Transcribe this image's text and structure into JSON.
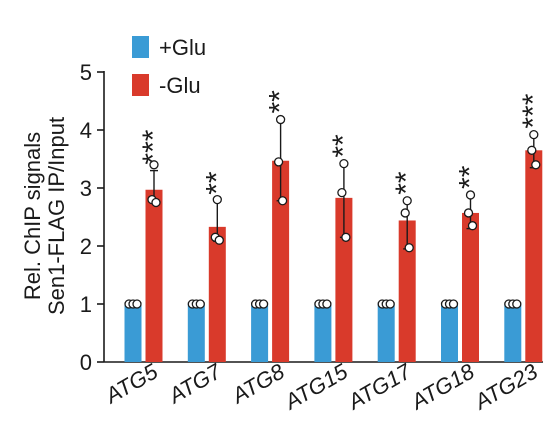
{
  "chart_data": {
    "type": "bar",
    "categories": [
      "ATG5",
      "ATG7",
      "ATG8",
      "ATG15",
      "ATG17",
      "ATG18",
      "ATG23"
    ],
    "ylabel": [
      "Rel. ChIP signals",
      "Sen1-FLAG IP/Input"
    ],
    "ylim": [
      0,
      5
    ],
    "yticks": [
      0,
      1,
      2,
      3,
      4,
      5
    ],
    "grid": false,
    "legend_position": "top-left",
    "series": [
      {
        "name": "+Glu",
        "color": "#3a9bd5",
        "values": [
          1.0,
          1.0,
          1.0,
          1.0,
          1.0,
          1.0,
          1.0
        ],
        "points": [
          [
            1,
            1,
            1
          ],
          [
            1,
            1,
            1
          ],
          [
            1,
            1,
            1
          ],
          [
            1,
            1,
            1
          ],
          [
            1,
            1,
            1
          ],
          [
            1,
            1,
            1
          ],
          [
            1,
            1,
            1
          ]
        ]
      },
      {
        "name": "-Glu",
        "color": "#d93a2b",
        "values": [
          2.97,
          2.33,
          3.47,
          2.83,
          2.44,
          2.57,
          3.65
        ],
        "error_low": [
          2.75,
          2.08,
          2.78,
          2.15,
          1.95,
          2.3,
          3.35
        ],
        "error_high": [
          3.3,
          2.78,
          4.18,
          3.42,
          2.78,
          2.88,
          3.92
        ],
        "points": [
          [
            3.4,
            2.8,
            2.75
          ],
          [
            2.8,
            2.15,
            2.1
          ],
          [
            4.18,
            3.45,
            2.78
          ],
          [
            3.42,
            2.92,
            2.15
          ],
          [
            2.78,
            2.57,
            1.97
          ],
          [
            2.88,
            2.57,
            2.35
          ],
          [
            3.92,
            3.65,
            3.4
          ]
        ]
      }
    ],
    "significance": [
      "***",
      "**",
      "**",
      "**",
      "**",
      "**",
      "***"
    ]
  }
}
